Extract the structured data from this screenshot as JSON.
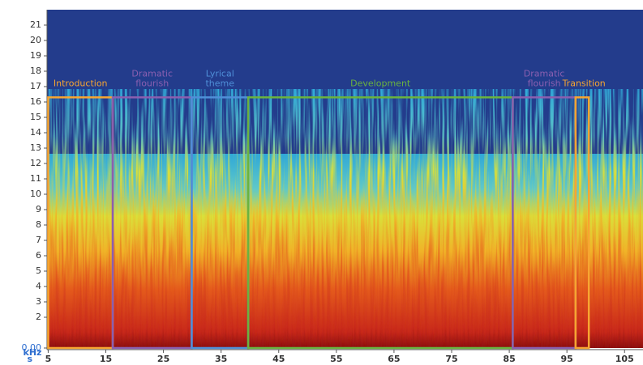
{
  "chart_data": {
    "type": "spectrogram",
    "x_unit": "s",
    "y_unit": "kHz",
    "xlim": [
      4.8,
      108.2
    ],
    "ylim": [
      0,
      22
    ],
    "xticks": [
      5,
      15,
      25,
      35,
      45,
      55,
      65,
      75,
      85,
      95,
      105
    ],
    "yticks": [
      {
        "value": 0,
        "label": "0.00"
      },
      2,
      3,
      4,
      5,
      6,
      7,
      8,
      9,
      10,
      11,
      12,
      13,
      14,
      15,
      16,
      17,
      18,
      19,
      20,
      21
    ],
    "box_top": 16.3,
    "sections": [
      {
        "label": [
          "Introduction"
        ],
        "start": 5,
        "end": 16.2,
        "color": "#f7a531"
      },
      {
        "label": [
          "Dramatic",
          "flourish"
        ],
        "start": 16.2,
        "end": 29.9,
        "color": "#8a5fb0"
      },
      {
        "label": [
          "Lyrical",
          "theme"
        ],
        "start": 29.9,
        "end": 39.7,
        "color": "#4f8fd8"
      },
      {
        "label": [
          "Development"
        ],
        "start": 39.7,
        "end": 85.6,
        "color": "#6ab33f"
      },
      {
        "label": [
          "Dramatic",
          "flourish"
        ],
        "start": 85.6,
        "end": 96.5,
        "color": "#8a5fb0"
      },
      {
        "label": [
          "Transition"
        ],
        "start": 96.5,
        "end": 98.8,
        "color": "#f7a531"
      }
    ]
  }
}
